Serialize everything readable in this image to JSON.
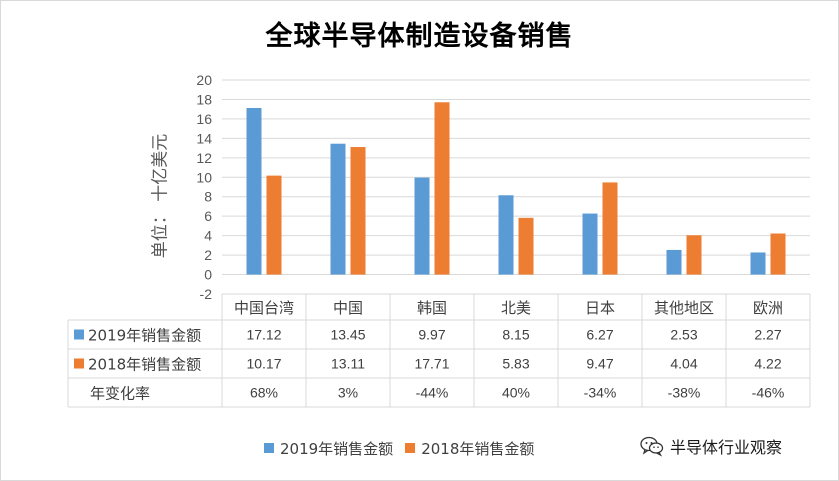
{
  "chart_data": {
    "type": "bar",
    "title": "全球半导体制造设备销售",
    "ylabel": "单位： 十亿美元",
    "categories": [
      "中国台湾",
      "中国",
      "韩国",
      "北美",
      "日本",
      "其他地区",
      "欧洲"
    ],
    "series": [
      {
        "name": "2019年销售金额",
        "color": "#5b9bd5",
        "values": [
          17.12,
          13.45,
          9.97,
          8.15,
          6.27,
          2.53,
          2.27
        ]
      },
      {
        "name": "2018年销售金额",
        "color": "#ed7d31",
        "values": [
          10.17,
          13.11,
          17.71,
          5.83,
          9.47,
          4.04,
          4.22
        ]
      }
    ],
    "ylim": [
      -2,
      20
    ],
    "yticks": [
      -2,
      0,
      2,
      4,
      6,
      8,
      10,
      12,
      14,
      16,
      18,
      20
    ],
    "grid": true,
    "legend": "bottom",
    "data_table": {
      "rows": [
        {
          "label": "2019年销售金额",
          "cells": [
            "17.12",
            "13.45",
            "9.97",
            "8.15",
            "6.27",
            "2.53",
            "2.27"
          ]
        },
        {
          "label": "2018年销售金额",
          "cells": [
            "10.17",
            "13.11",
            "17.71",
            "5.83",
            "9.47",
            "4.04",
            "4.22"
          ]
        },
        {
          "label": "年变化率",
          "cells": [
            "68%",
            "3%",
            "-44%",
            "40%",
            "-34%",
            "-38%",
            "-46%"
          ]
        }
      ]
    }
  },
  "watermark": {
    "text": "半导体行业观察",
    "icon": "wechat-icon"
  }
}
